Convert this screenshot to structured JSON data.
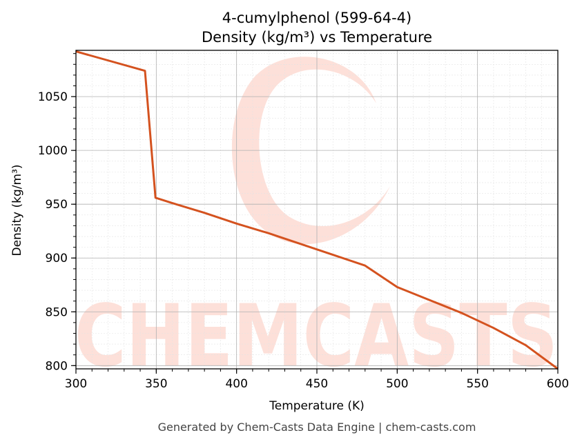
{
  "chart_data": {
    "type": "line",
    "title_line1": "4-cumylphenol (599-64-4)",
    "title_line2": "Density (kg/m³) vs Temperature",
    "xlabel": "Temperature (K)",
    "ylabel": "Density (kg/m³)",
    "xlim": [
      300,
      600
    ],
    "ylim": [
      797,
      1093
    ],
    "x_ticks": [
      300,
      350,
      400,
      450,
      500,
      550,
      600
    ],
    "y_ticks": [
      800,
      850,
      900,
      950,
      1000,
      1050
    ],
    "grid": true,
    "series": [
      {
        "color": "#d4521f",
        "points": [
          [
            300,
            1092
          ],
          [
            343,
            1074
          ],
          [
            349.5,
            956
          ],
          [
            360,
            951
          ],
          [
            380,
            942
          ],
          [
            400,
            932
          ],
          [
            420,
            923
          ],
          [
            440,
            913
          ],
          [
            460,
            903
          ],
          [
            480,
            893
          ],
          [
            500,
            873
          ],
          [
            520,
            861
          ],
          [
            540,
            849
          ],
          [
            560,
            835
          ],
          [
            580,
            819
          ],
          [
            600,
            797
          ]
        ]
      }
    ]
  },
  "watermark": {
    "text": "CHEMCASTS",
    "color": "#fde0d9"
  },
  "footer": "Generated by Chem-Casts Data Engine | chem-casts.com"
}
